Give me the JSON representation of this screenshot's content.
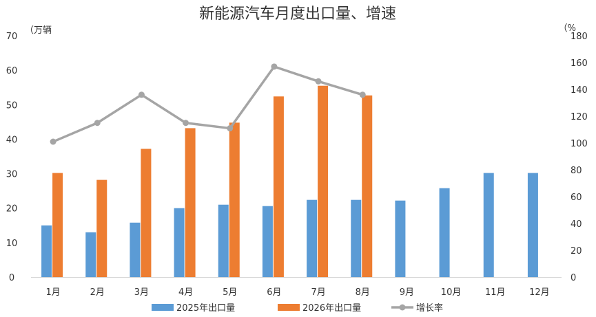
{
  "chart_data": {
    "type": "bar",
    "title": "新能源汽车月度出口量、增速",
    "y_left_unit": "（万辆",
    "y_right_unit": "（%",
    "categories": [
      "1月",
      "2月",
      "3月",
      "4月",
      "5月",
      "6月",
      "7月",
      "8月",
      "9月",
      "10月",
      "11月",
      "12月"
    ],
    "y_left_ticks": [
      "0",
      "10",
      "20",
      "30",
      "40",
      "50",
      "60",
      "70"
    ],
    "y_right_ticks": [
      "0",
      "20",
      "40",
      "60",
      "80",
      "100",
      "120",
      "140",
      "160",
      "180"
    ],
    "ylim_left": [
      0,
      70
    ],
    "ylim_right": [
      0,
      180
    ],
    "series": [
      {
        "name": "2025年出口量",
        "type": "bar",
        "axis": "left",
        "color": "#5b9bd5",
        "values": [
          15.0,
          13.0,
          15.8,
          20.0,
          21.0,
          20.6,
          22.4,
          22.4,
          22.2,
          25.8,
          30.2,
          30.2
        ]
      },
      {
        "name": "2026年出口量",
        "type": "bar",
        "axis": "left",
        "color": "#ed7d31",
        "values": [
          30.2,
          28.2,
          37.2,
          43.2,
          44.8,
          52.4,
          55.5,
          52.7,
          null,
          null,
          null,
          null
        ]
      },
      {
        "name": "增长率",
        "type": "line",
        "axis": "right",
        "color": "#a5a5a5",
        "values": [
          101,
          115,
          136,
          115,
          111,
          157,
          146,
          136,
          null,
          null,
          null,
          null
        ]
      }
    ],
    "grid": false,
    "legend_position": "bottom"
  }
}
